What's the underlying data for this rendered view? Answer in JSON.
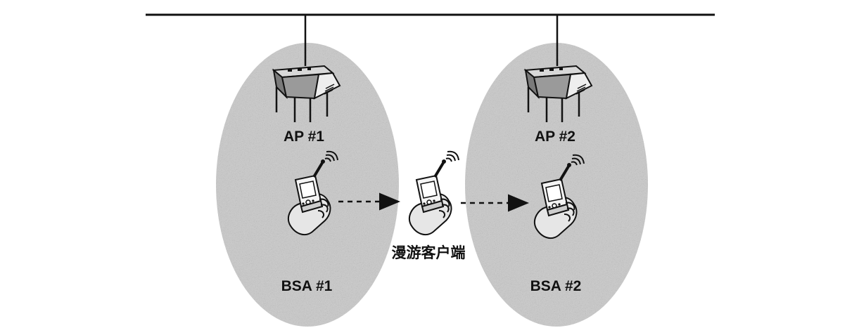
{
  "labels": {
    "ap1": "AP #1",
    "ap2": "AP #2",
    "bsa1": "BSA #1",
    "bsa2": "BSA #2",
    "roaming_client": "漫游客户端"
  },
  "icons": {
    "access_point": "access-point-icon",
    "handheld_client": "handheld-device-icon",
    "movement_arrow": "dashed-arrow-right"
  },
  "colors": {
    "bsa_fill": "#c9c9c9",
    "line": "#111111",
    "ap_fill": "#9a9a9a",
    "device_fill": "#f2f2f2"
  }
}
